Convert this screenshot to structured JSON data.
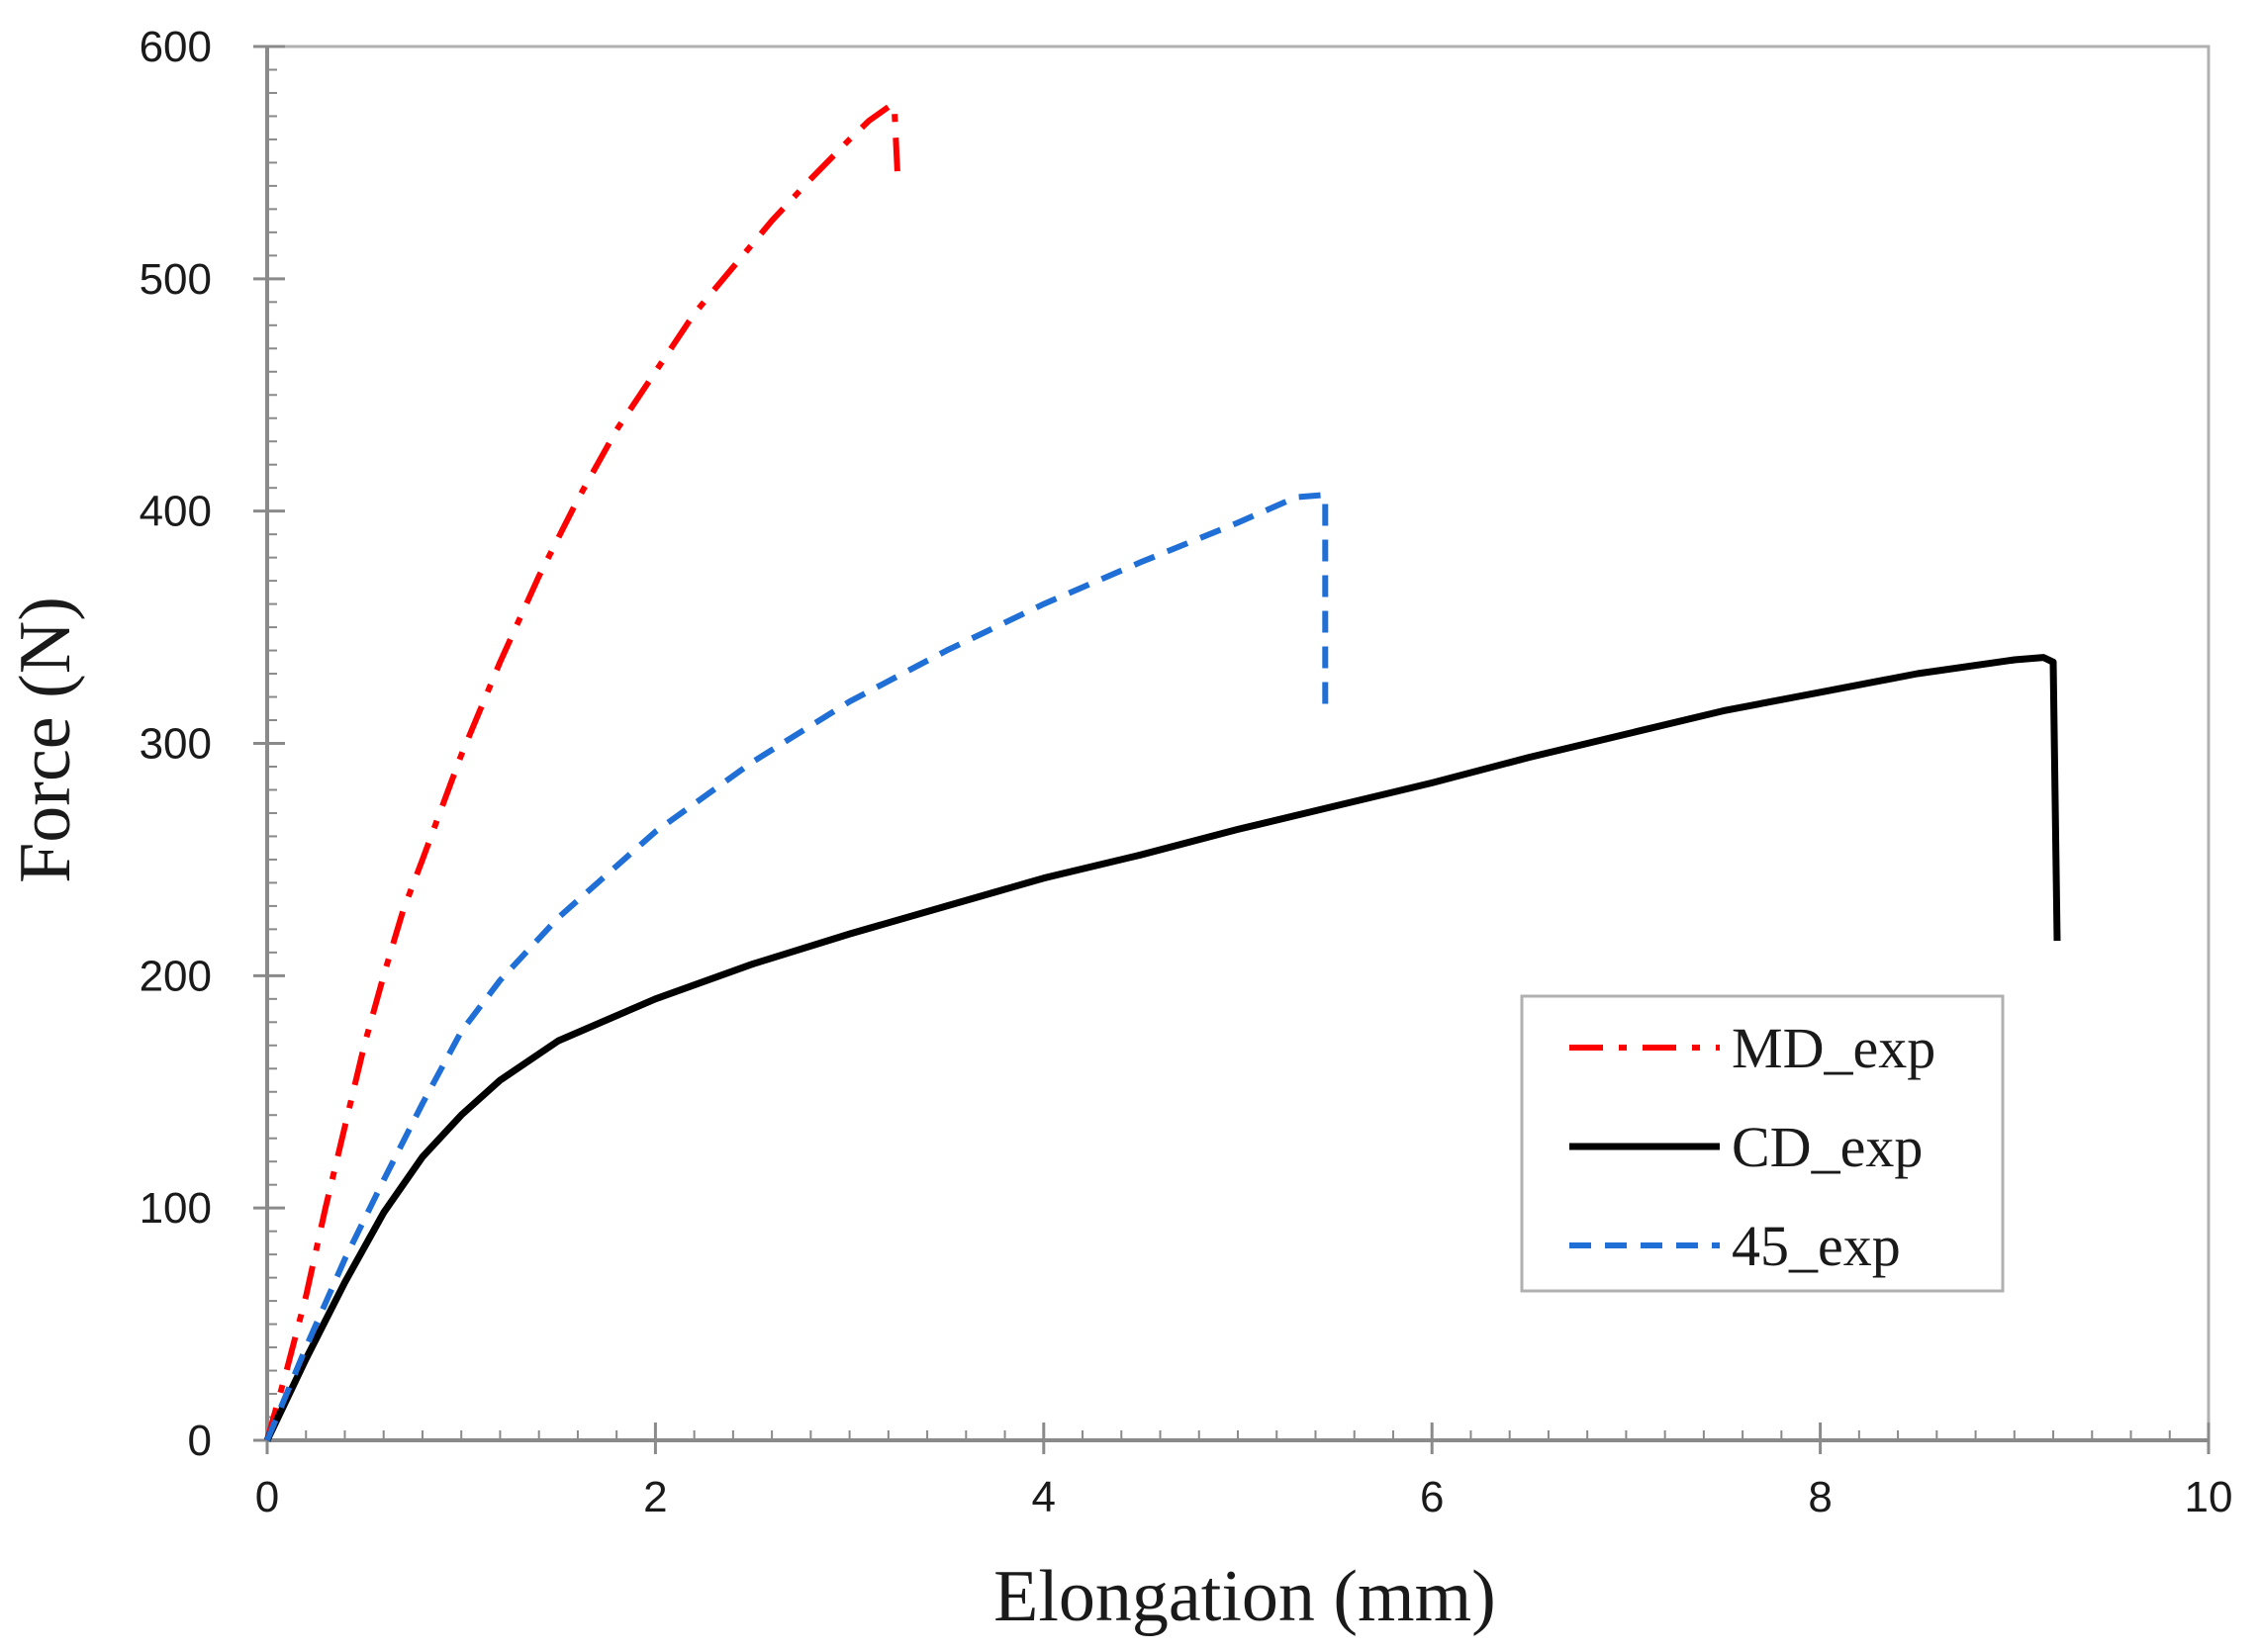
{
  "chart_data": {
    "type": "line",
    "title": "",
    "xlabel": "Elongation (mm)",
    "ylabel": "Force (N)",
    "xlim": [
      0,
      10
    ],
    "ylim": [
      0,
      600
    ],
    "x_ticks": [
      0,
      2,
      4,
      6,
      8,
      10
    ],
    "y_ticks": [
      0,
      100,
      200,
      300,
      400,
      500,
      600
    ],
    "grid": false,
    "legend_position": "bottom-right",
    "series": [
      {
        "name": "MD_exp",
        "color": "#ff0000",
        "dash": "dash-dot",
        "points": [
          [
            0,
            0
          ],
          [
            0.1,
            30
          ],
          [
            0.2,
            62
          ],
          [
            0.3,
            100
          ],
          [
            0.4,
            135
          ],
          [
            0.5,
            170
          ],
          [
            0.6,
            200
          ],
          [
            0.7,
            228
          ],
          [
            0.8,
            250
          ],
          [
            1.0,
            295
          ],
          [
            1.2,
            335
          ],
          [
            1.4,
            372
          ],
          [
            1.6,
            405
          ],
          [
            1.8,
            435
          ],
          [
            2.0,
            460
          ],
          [
            2.2,
            485
          ],
          [
            2.4,
            505
          ],
          [
            2.6,
            525
          ],
          [
            2.8,
            543
          ],
          [
            3.0,
            560
          ],
          [
            3.1,
            568
          ],
          [
            3.2,
            574
          ],
          [
            3.23,
            575
          ],
          [
            3.25,
            540
          ]
        ]
      },
      {
        "name": "CD_exp",
        "color": "#000000",
        "dash": "solid",
        "points": [
          [
            0,
            0
          ],
          [
            0.2,
            35
          ],
          [
            0.4,
            68
          ],
          [
            0.6,
            98
          ],
          [
            0.8,
            122
          ],
          [
            1.0,
            140
          ],
          [
            1.2,
            155
          ],
          [
            1.5,
            172
          ],
          [
            2.0,
            190
          ],
          [
            2.5,
            205
          ],
          [
            3.0,
            218
          ],
          [
            3.5,
            230
          ],
          [
            4.0,
            242
          ],
          [
            4.5,
            252
          ],
          [
            5.0,
            263
          ],
          [
            5.5,
            273
          ],
          [
            6.0,
            283
          ],
          [
            6.5,
            294
          ],
          [
            7.0,
            304
          ],
          [
            7.5,
            314
          ],
          [
            8.0,
            322
          ],
          [
            8.5,
            330
          ],
          [
            9.0,
            336
          ],
          [
            9.15,
            337
          ],
          [
            9.2,
            335
          ],
          [
            9.22,
            215
          ]
        ]
      },
      {
        "name": "45_exp",
        "color": "#1f6fd6",
        "dash": "dashed",
        "points": [
          [
            0,
            0
          ],
          [
            0.2,
            40
          ],
          [
            0.4,
            78
          ],
          [
            0.6,
            112
          ],
          [
            0.8,
            145
          ],
          [
            1.0,
            176
          ],
          [
            1.2,
            198
          ],
          [
            1.5,
            225
          ],
          [
            2.0,
            262
          ],
          [
            2.5,
            292
          ],
          [
            3.0,
            318
          ],
          [
            3.5,
            340
          ],
          [
            4.0,
            360
          ],
          [
            4.5,
            378
          ],
          [
            5.0,
            395
          ],
          [
            5.3,
            406
          ],
          [
            5.45,
            407
          ],
          [
            5.45,
            315
          ]
        ]
      }
    ]
  }
}
